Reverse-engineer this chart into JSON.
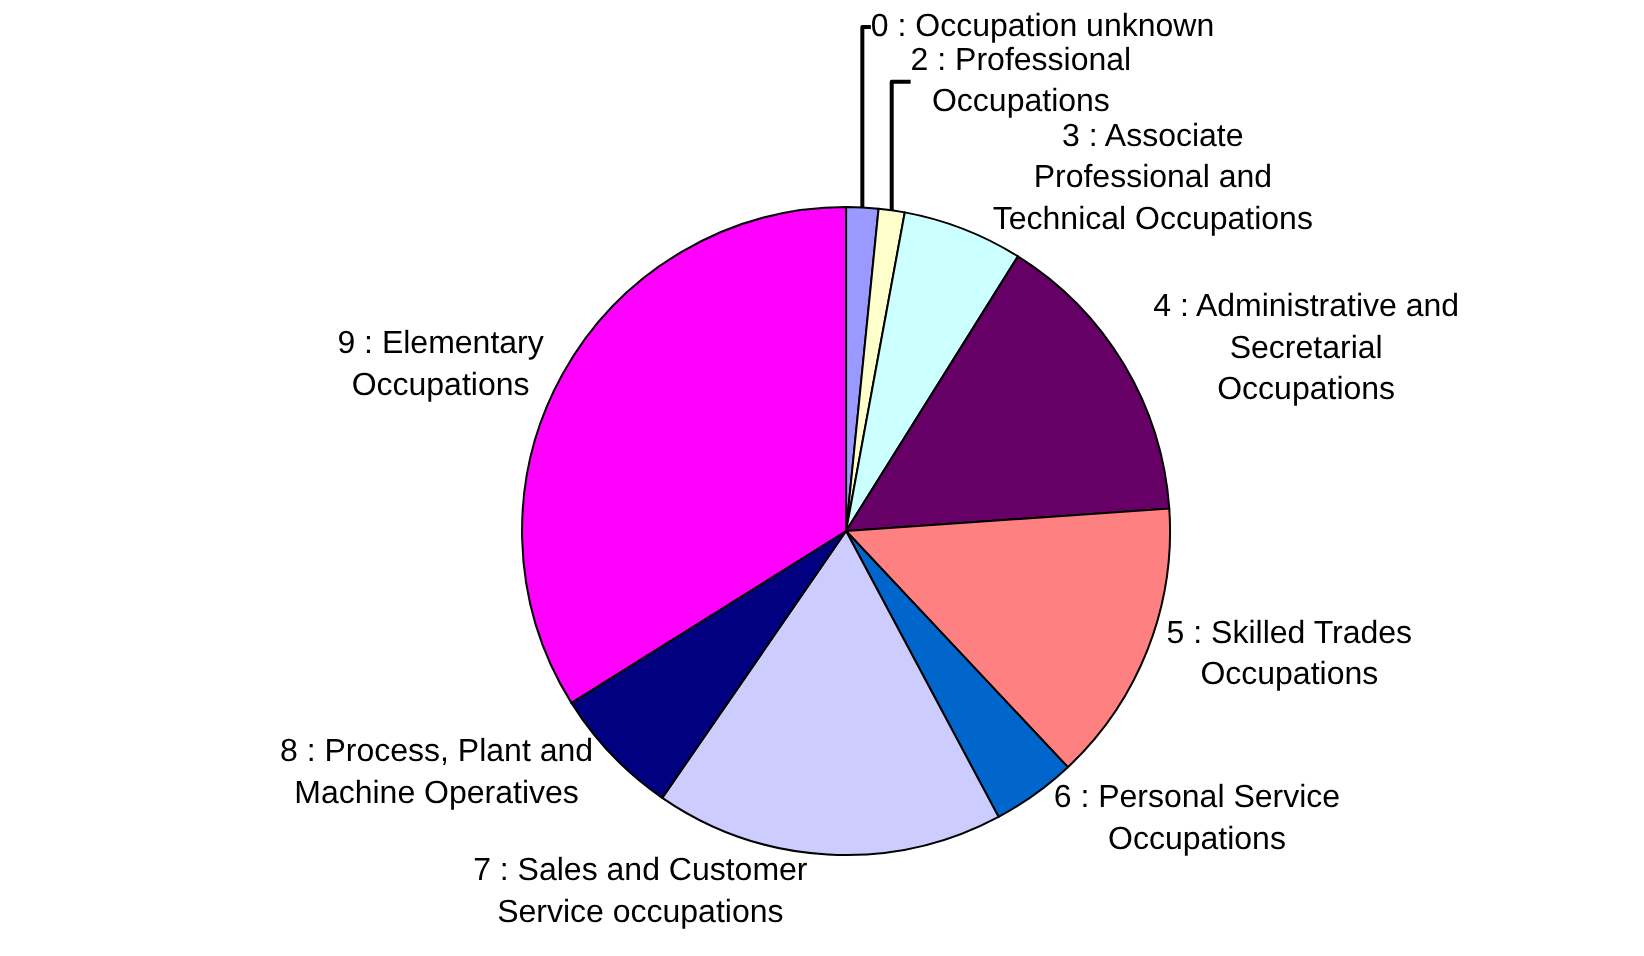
{
  "chart_data": {
    "type": "pie",
    "categories": [
      "0 : Occupation unknown",
      "2 : Professional Occupations",
      "3 : Associate Professional and Technical Occupations",
      "4 : Administrative and Secretarial Occupations",
      "5 : Skilled Trades Occupations",
      "6 : Personal Service Occupations",
      "7 : Sales and Customer Service occupations",
      "8 : Process, Plant and Machine Operatives",
      "9 : Elementary Occupations"
    ],
    "values": [
      1.6,
      1.3,
      6.0,
      15.0,
      14.1,
      4.2,
      17.4,
      6.5,
      33.9
    ],
    "colors": [
      "#9999ff",
      "#ffffcc",
      "#ccffff",
      "#660066",
      "#ff8080",
      "#0066cc",
      "#ccccff",
      "#000080",
      "#ff00ff"
    ],
    "legend": false
  }
}
